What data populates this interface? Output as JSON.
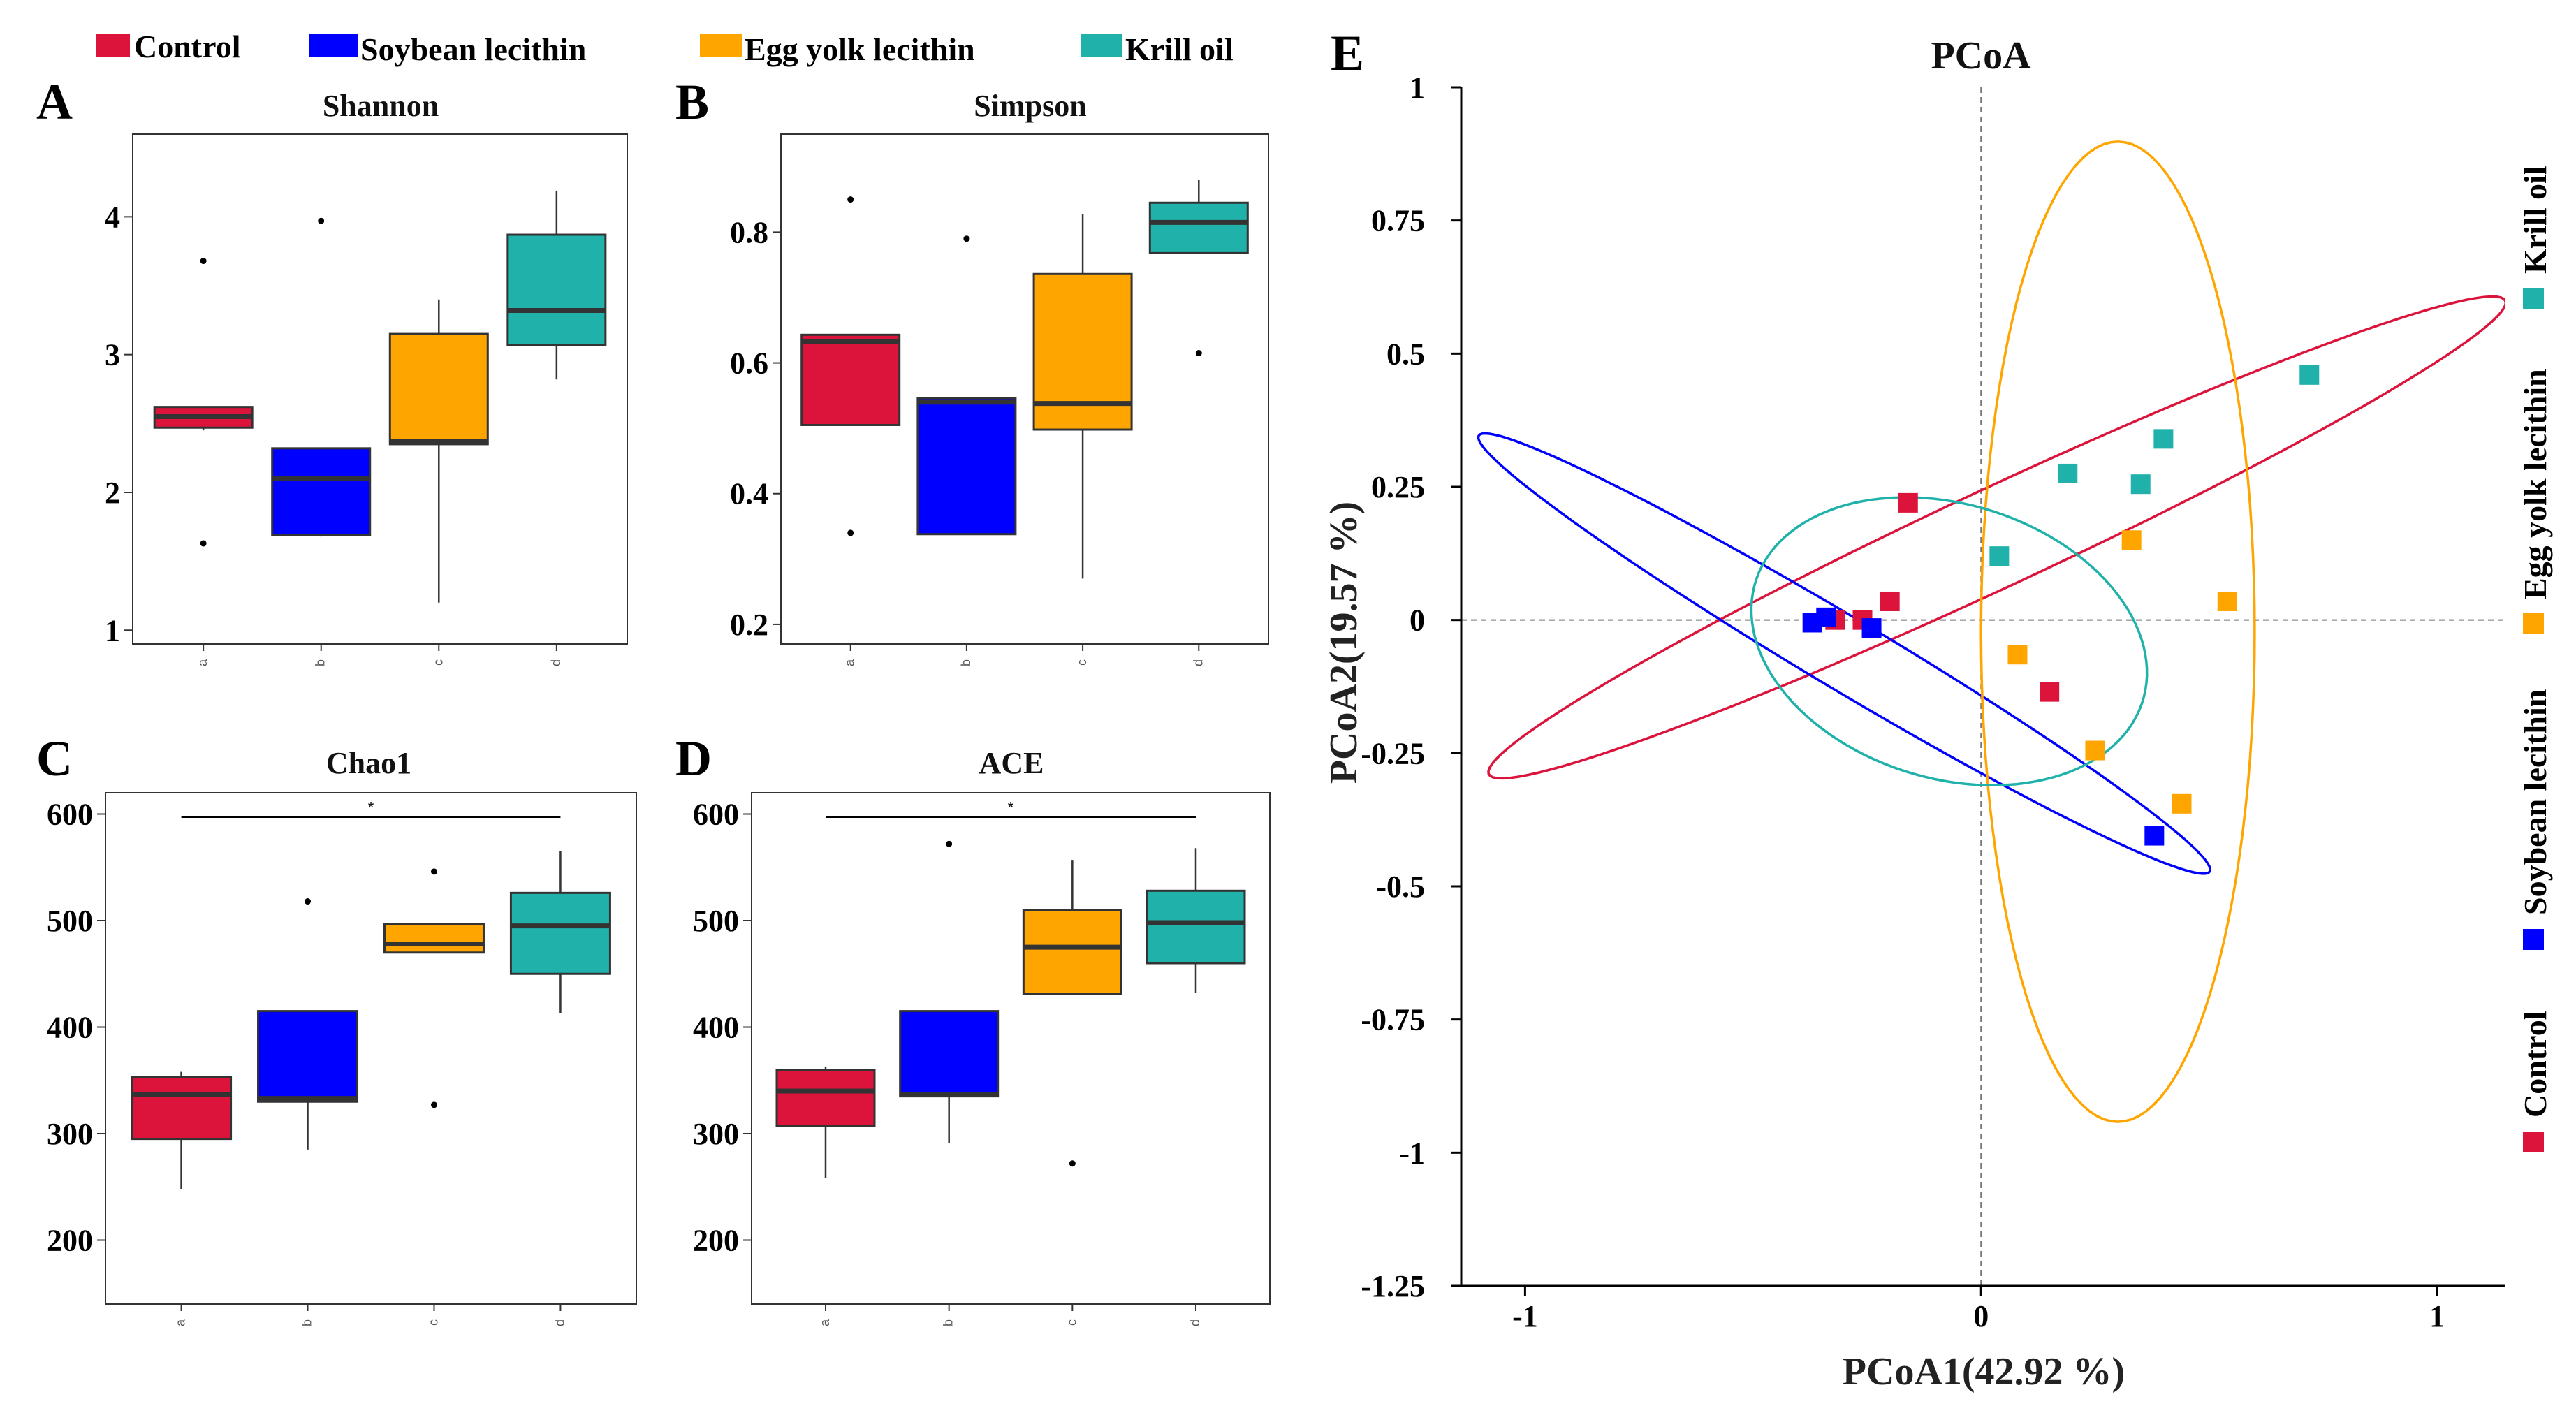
{
  "legend": [
    {
      "label": "Control",
      "color": "#dc143c"
    },
    {
      "label": "Soybean lecithin",
      "color": "#0000ff"
    },
    {
      "label": "Egg yolk lecithin",
      "color": "#ffa500"
    },
    {
      "label": "Krill oil",
      "color": "#20b2aa"
    }
  ],
  "colors": [
    "#dc143c",
    "#0000ff",
    "#ffa500",
    "#20b2aa"
  ],
  "chart_data": [
    {
      "panel": "A",
      "type": "box",
      "title": "Shannon",
      "categories": [
        "a",
        "b",
        "c",
        "d"
      ],
      "ylim": [
        0.9,
        4.6
      ],
      "yticks": [
        1,
        2,
        3,
        4
      ],
      "ytick_labels": [
        "1",
        "2",
        "3",
        "4"
      ],
      "boxes": [
        {
          "min": 2.45,
          "q1": 2.47,
          "median": 2.55,
          "q3": 2.62,
          "max": 2.62,
          "outliers": [
            3.68,
            1.63
          ]
        },
        {
          "min": 1.68,
          "q1": 1.69,
          "median": 2.1,
          "q3": 2.32,
          "max": 2.32,
          "outliers": [
            3.97
          ]
        },
        {
          "min": 1.2,
          "q1": 2.35,
          "median": 2.37,
          "q3": 3.15,
          "max": 3.4,
          "outliers": []
        },
        {
          "min": 2.82,
          "q1": 3.07,
          "median": 3.32,
          "q3": 3.87,
          "max": 4.19,
          "outliers": []
        }
      ],
      "significance": null
    },
    {
      "panel": "B",
      "type": "box",
      "title": "Simpson",
      "categories": [
        "a",
        "b",
        "c",
        "d"
      ],
      "ylim": [
        0.17,
        0.95
      ],
      "yticks": [
        0.2,
        0.4,
        0.6,
        0.8
      ],
      "ytick_labels": [
        "0.2",
        "0.4",
        "0.6",
        "0.8"
      ],
      "boxes": [
        {
          "min": 0.505,
          "q1": 0.505,
          "median": 0.633,
          "q3": 0.643,
          "max": 0.643,
          "outliers": [
            0.85,
            0.34
          ]
        },
        {
          "min": 0.338,
          "q1": 0.338,
          "median": 0.54,
          "q3": 0.546,
          "max": 0.546,
          "outliers": [
            0.79
          ]
        },
        {
          "min": 0.27,
          "q1": 0.498,
          "median": 0.538,
          "q3": 0.736,
          "max": 0.828,
          "outliers": []
        },
        {
          "min": 0.768,
          "q1": 0.768,
          "median": 0.815,
          "q3": 0.845,
          "max": 0.88,
          "outliers": [
            0.615
          ]
        }
      ],
      "significance": null
    },
    {
      "panel": "C",
      "type": "box",
      "title": "Chao1",
      "categories": [
        "a",
        "b",
        "c",
        "d"
      ],
      "ylim": [
        140,
        620
      ],
      "yticks": [
        200,
        300,
        400,
        500,
        600
      ],
      "ytick_labels": [
        "200",
        "300",
        "400",
        "500",
        "600"
      ],
      "boxes": [
        {
          "min": 248,
          "q1": 295,
          "median": 337,
          "q3": 353,
          "max": 358,
          "outliers": []
        },
        {
          "min": 285,
          "q1": 330,
          "median": 333,
          "q3": 415,
          "max": 415,
          "outliers": [
            518
          ]
        },
        {
          "min": 470,
          "q1": 470,
          "median": 478,
          "q3": 497,
          "max": 497,
          "outliers": [
            546,
            327
          ]
        },
        {
          "min": 413,
          "q1": 450,
          "median": 495,
          "q3": 526,
          "max": 565,
          "outliers": []
        }
      ],
      "significance": {
        "from": 0,
        "to": 3,
        "y": 600,
        "label": "*"
      }
    },
    {
      "panel": "D",
      "type": "box",
      "title": "ACE",
      "categories": [
        "a",
        "b",
        "c",
        "d"
      ],
      "ylim": [
        140,
        620
      ],
      "yticks": [
        200,
        300,
        400,
        500,
        600
      ],
      "ytick_labels": [
        "200",
        "300",
        "400",
        "500",
        "600"
      ],
      "boxes": [
        {
          "min": 258,
          "q1": 307,
          "median": 340,
          "q3": 360,
          "max": 363,
          "outliers": []
        },
        {
          "min": 291,
          "q1": 335,
          "median": 337,
          "q3": 415,
          "max": 415,
          "outliers": [
            572
          ]
        },
        {
          "min": 431,
          "q1": 431,
          "median": 475,
          "q3": 510,
          "max": 557,
          "outliers": [
            272
          ]
        },
        {
          "min": 432,
          "q1": 460,
          "median": 498,
          "q3": 528,
          "max": 568,
          "outliers": []
        }
      ],
      "significance": {
        "from": 0,
        "to": 3,
        "y": 600,
        "label": "*"
      }
    },
    {
      "panel": "E",
      "type": "scatter",
      "title": "PCoA",
      "xlabel": "PCoA1(42.92 %)",
      "ylabel": "PCoA2(19.57 %)",
      "xlim": [
        -1.14,
        1.15
      ],
      "ylim": [
        -1.25,
        1.0
      ],
      "xticks": [
        -1,
        0,
        1
      ],
      "xtick_labels": [
        "-1",
        "0",
        "1"
      ],
      "yticks": [
        -1.25,
        -1,
        -0.75,
        -0.5,
        -0.25,
        0,
        0.25,
        0.5,
        0.75,
        1
      ],
      "ytick_labels": [
        "-1.25",
        "-1",
        "-0.75",
        "-0.5",
        "-0.25",
        "0",
        "0.25",
        "0.5",
        "0.75",
        "1"
      ],
      "series": [
        {
          "name": "Control",
          "points": [
            [
              -0.16,
              0.22
            ],
            [
              -0.32,
              0.0
            ],
            [
              -0.26,
              0.0
            ],
            [
              -0.2,
              0.035
            ],
            [
              0.15,
              -0.135
            ]
          ]
        },
        {
          "name": "Soybean lecithin",
          "points": [
            [
              -0.37,
              -0.005
            ],
            [
              -0.34,
              0.005
            ],
            [
              -0.24,
              -0.015
            ],
            [
              0.38,
              -0.405
            ]
          ]
        },
        {
          "name": "Egg yolk lecithin",
          "points": [
            [
              0.08,
              -0.065
            ],
            [
              0.25,
              -0.245
            ],
            [
              0.33,
              0.15
            ],
            [
              0.44,
              -0.345
            ],
            [
              0.54,
              0.035
            ]
          ]
        },
        {
          "name": "Krill oil",
          "points": [
            [
              0.04,
              0.12
            ],
            [
              0.19,
              0.275
            ],
            [
              0.35,
              0.255
            ],
            [
              0.4,
              0.34
            ],
            [
              0.72,
              0.46
            ]
          ]
        }
      ],
      "ellipses": [
        {
          "group": "Control",
          "cx": 0.035,
          "cy": 0.155,
          "rx": 1.2,
          "ry": 0.095,
          "angle_deg": 21.7
        },
        {
          "group": "Soybean lecithin",
          "cx": -0.3,
          "cy": -0.063,
          "rx": 0.9,
          "ry": 0.07,
          "angle_deg": -27
        },
        {
          "group": "Egg yolk lecithin",
          "cx": 0.3,
          "cy": -0.022,
          "rx": 0.3,
          "ry": 0.92,
          "angle_deg": 0
        },
        {
          "group": "Krill oil",
          "cx": -0.07,
          "cy": -0.04,
          "rx": 0.44,
          "ry": 0.26,
          "angle_deg": -12
        }
      ]
    }
  ]
}
